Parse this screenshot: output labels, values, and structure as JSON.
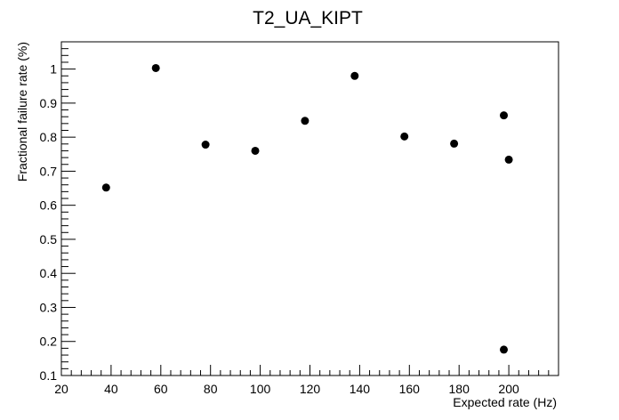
{
  "chart_data": {
    "type": "scatter",
    "title": "T2_UA_KIPT",
    "xlabel": "Expected rate (Hz)",
    "ylabel": "Fractional failure rate (%)",
    "xlim": [
      20,
      220
    ],
    "ylim": [
      0.1,
      1.08
    ],
    "xticks": [
      20,
      40,
      60,
      80,
      100,
      120,
      140,
      160,
      180,
      200
    ],
    "yticks": [
      0.1,
      0.2,
      0.3,
      0.4,
      0.5,
      0.6,
      0.7,
      0.8,
      0.9,
      1
    ],
    "grid": false,
    "legend": "none",
    "marker_color": "#000000",
    "points": [
      {
        "x": 38,
        "y": 0.652
      },
      {
        "x": 58,
        "y": 1.003
      },
      {
        "x": 78,
        "y": 0.778
      },
      {
        "x": 98,
        "y": 0.76
      },
      {
        "x": 118,
        "y": 0.848
      },
      {
        "x": 138,
        "y": 0.98
      },
      {
        "x": 158,
        "y": 0.802
      },
      {
        "x": 178,
        "y": 0.781
      },
      {
        "x": 198,
        "y": 0.864
      },
      {
        "x": 198,
        "y": 0.176
      },
      {
        "x": 200,
        "y": 0.734
      }
    ]
  }
}
